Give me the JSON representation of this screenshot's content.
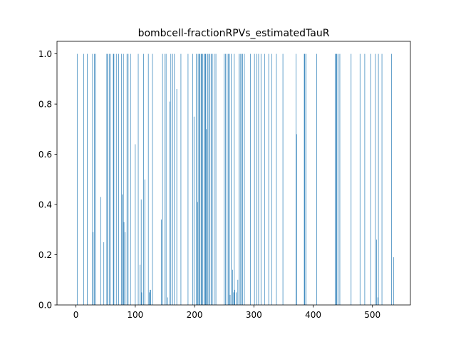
{
  "chart_data": {
    "type": "bar",
    "title": "bombcell-fractionRPVs_estimatedTauR",
    "xlabel": "",
    "ylabel": "",
    "xlim": [
      -32,
      564
    ],
    "ylim": [
      0,
      1.05
    ],
    "xticks": [
      0,
      100,
      200,
      300,
      400,
      500
    ],
    "yticks": [
      0.0,
      0.2,
      0.4,
      0.6,
      0.8,
      1.0
    ],
    "grid": false,
    "bar_color": "#1f77b4",
    "x": [
      2,
      13,
      19,
      28,
      29,
      31,
      33,
      42,
      47,
      52,
      53,
      56,
      58,
      63,
      64,
      68,
      72,
      77,
      78,
      80,
      81,
      83,
      86,
      88,
      92,
      100,
      105,
      108,
      110,
      111,
      114,
      116,
      122,
      124,
      125,
      126,
      129,
      144,
      146,
      150,
      152,
      155,
      158,
      160,
      163,
      166,
      170,
      177,
      189,
      197,
      199,
      203,
      205,
      206,
      208,
      209,
      211,
      212,
      214,
      216,
      218,
      219,
      220,
      222,
      224,
      226,
      228,
      230,
      233,
      236,
      250,
      252,
      255,
      257,
      259,
      260,
      262,
      264,
      266,
      267,
      268,
      270,
      273,
      275,
      277,
      279,
      281,
      284,
      294,
      301,
      305,
      308,
      312,
      318,
      325,
      330,
      338,
      349,
      371,
      372,
      385,
      386,
      388,
      406,
      437,
      439,
      440,
      442,
      445,
      464,
      479,
      487,
      497,
      505,
      507,
      509,
      510,
      516,
      532,
      536
    ],
    "values": [
      1.0,
      1.0,
      1.0,
      1.0,
      0.29,
      1.0,
      1.0,
      0.43,
      0.25,
      1.0,
      1.0,
      1.0,
      1.0,
      1.0,
      1.0,
      1.0,
      1.0,
      1.0,
      0.44,
      1.0,
      0.33,
      0.29,
      1.0,
      1.0,
      1.0,
      0.64,
      1.0,
      0.16,
      0.42,
      0.05,
      1.0,
      0.5,
      1.0,
      0.05,
      0.06,
      0.06,
      1.0,
      0.34,
      1.0,
      1.0,
      1.0,
      0.03,
      0.81,
      1.0,
      1.0,
      1.0,
      0.86,
      1.0,
      1.0,
      1.0,
      0.75,
      1.0,
      0.41,
      1.0,
      1.0,
      1.0,
      1.0,
      1.0,
      1.0,
      1.0,
      1.0,
      1.0,
      0.7,
      1.0,
      1.0,
      1.0,
      1.0,
      1.0,
      1.0,
      1.0,
      1.0,
      1.0,
      1.0,
      1.0,
      1.0,
      0.04,
      1.0,
      0.14,
      0.05,
      1.0,
      0.06,
      0.05,
      0.1,
      1.0,
      1.0,
      1.0,
      1.0,
      1.0,
      1.0,
      1.0,
      1.0,
      1.0,
      1.0,
      1.0,
      1.0,
      1.0,
      1.0,
      1.0,
      1.0,
      0.68,
      1.0,
      1.0,
      1.0,
      1.0,
      1.0,
      1.0,
      1.0,
      1.0,
      1.0,
      1.0,
      1.0,
      1.0,
      1.0,
      1.0,
      0.26,
      0.03,
      1.0,
      1.0,
      1.0,
      0.19
    ]
  }
}
